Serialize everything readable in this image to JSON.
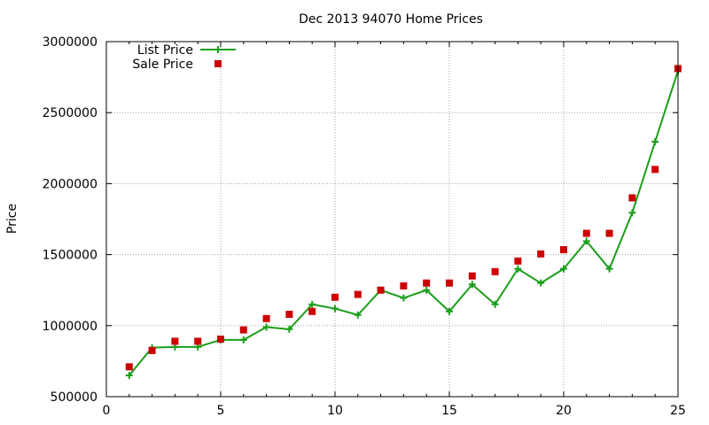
{
  "chart_data": {
    "type": "line",
    "title": "Dec 2013 94070 Home Prices",
    "xlabel": "",
    "ylabel": "Price",
    "xlim": [
      0,
      25
    ],
    "ylim": [
      500000,
      3000000
    ],
    "xticks": [
      0,
      5,
      10,
      15,
      20,
      25
    ],
    "yticks": [
      500000,
      1000000,
      1500000,
      2000000,
      2500000,
      3000000
    ],
    "grid": true,
    "legend_position": "top-left",
    "series": [
      {
        "name": "List Price",
        "style": "line+plus",
        "color": "#1a9e1a",
        "x": [
          1,
          2,
          3,
          4,
          5,
          6,
          7,
          8,
          9,
          10,
          11,
          12,
          13,
          14,
          15,
          16,
          17,
          18,
          19,
          20,
          21,
          22,
          23,
          24,
          25
        ],
        "values": [
          650000,
          845000,
          850000,
          850000,
          900000,
          900000,
          990000,
          975000,
          1150000,
          1120000,
          1075000,
          1250000,
          1195000,
          1250000,
          1100000,
          1290000,
          1150000,
          1400000,
          1300000,
          1400000,
          1595000,
          1400000,
          1795000,
          2295000,
          2795000
        ]
      },
      {
        "name": "Sale Price",
        "style": "square-markers",
        "color": "#cc0000",
        "x": [
          1,
          2,
          3,
          4,
          5,
          6,
          7,
          8,
          9,
          10,
          11,
          12,
          13,
          14,
          15,
          16,
          17,
          18,
          19,
          20,
          21,
          22,
          23,
          24,
          25
        ],
        "values": [
          710000,
          825000,
          890000,
          890000,
          905000,
          970000,
          1050000,
          1080000,
          1100000,
          1200000,
          1220000,
          1250000,
          1280000,
          1300000,
          1300000,
          1350000,
          1380000,
          1455000,
          1505000,
          1535000,
          1650000,
          1650000,
          1900000,
          2100000,
          2810000
        ]
      }
    ]
  }
}
